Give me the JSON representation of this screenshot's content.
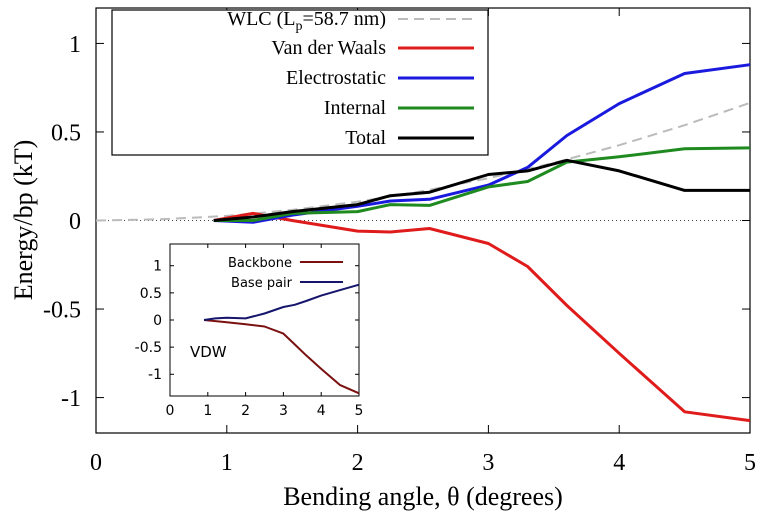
{
  "chart_data": [
    {
      "type": "line",
      "xlabel": "Bending angle, θ (degrees)",
      "ylabel": "Energy/bp (kT)",
      "xlim": [
        0,
        5
      ],
      "ylim": [
        -1.2,
        1.2
      ],
      "xticks": [
        "0",
        "1",
        "2",
        "3",
        "4",
        "5"
      ],
      "yticks": [
        "-1",
        "-0.5",
        "0",
        "0.5",
        "1"
      ],
      "legend_position": "top-left",
      "zero_line": {
        "y": 0,
        "style": "dotted",
        "color": "#444444"
      },
      "series": [
        {
          "name": "WLC (Lp=58.7 nm)",
          "name_main": "WLC (L",
          "name_sub": "p",
          "name_tail": "=58.7 nm)",
          "color": "#bbbbbb",
          "dashed": true,
          "x": [
            0,
            0.5,
            1,
            1.5,
            2,
            2.5,
            3,
            3.5,
            4,
            4.5,
            5
          ],
          "y": [
            0,
            0.007,
            0.026,
            0.06,
            0.106,
            0.166,
            0.239,
            0.325,
            0.425,
            0.538,
            0.664
          ]
        },
        {
          "name": "Van der Waals",
          "color": "#e01b1b",
          "dashed": false,
          "x": [
            0.9,
            1.2,
            1.5,
            2.0,
            2.25,
            2.55,
            3.0,
            3.3,
            3.6,
            4.0,
            4.5,
            5.0
          ],
          "y": [
            0.0,
            0.04,
            0.0,
            -0.06,
            -0.065,
            -0.045,
            -0.13,
            -0.26,
            -0.48,
            -0.75,
            -1.08,
            -1.13
          ]
        },
        {
          "name": "Electrostatic",
          "color": "#1a1adf",
          "dashed": false,
          "x": [
            0.9,
            1.2,
            1.5,
            2.0,
            2.25,
            2.55,
            3.0,
            3.3,
            3.6,
            4.0,
            4.5,
            5.0
          ],
          "y": [
            0.0,
            -0.01,
            0.03,
            0.08,
            0.11,
            0.12,
            0.2,
            0.3,
            0.48,
            0.66,
            0.83,
            0.88
          ]
        },
        {
          "name": "Internal",
          "color": "#1f8a1f",
          "dashed": false,
          "x": [
            0.9,
            1.2,
            1.5,
            2.0,
            2.25,
            2.55,
            3.0,
            3.3,
            3.6,
            4.0,
            4.5,
            5.0
          ],
          "y": [
            0.0,
            0.0,
            0.04,
            0.05,
            0.09,
            0.085,
            0.19,
            0.22,
            0.33,
            0.36,
            0.405,
            0.41
          ]
        },
        {
          "name": "Total",
          "color": "#000000",
          "dashed": false,
          "x": [
            0.9,
            1.2,
            1.5,
            2.0,
            2.25,
            2.55,
            3.0,
            3.3,
            3.6,
            4.0,
            4.5,
            5.0
          ],
          "y": [
            0.0,
            0.02,
            0.05,
            0.09,
            0.14,
            0.16,
            0.26,
            0.28,
            0.34,
            0.28,
            0.17,
            0.17
          ]
        }
      ]
    },
    {
      "type": "line",
      "inset": true,
      "title": "VDW",
      "xlim": [
        0,
        5
      ],
      "ylim": [
        -1.4,
        1.4
      ],
      "xticks": [
        "0",
        "1",
        "2",
        "3",
        "4",
        "5"
      ],
      "yticks": [
        "1",
        "0.5",
        "0",
        "-0.5",
        "-1"
      ],
      "legend_position": "top-left",
      "series": [
        {
          "name": "Backbone",
          "color": "#7a1010",
          "x": [
            0.9,
            1.2,
            1.5,
            2.0,
            2.5,
            3.0,
            3.3,
            3.6,
            4.0,
            4.5,
            5.0
          ],
          "y": [
            0.0,
            -0.02,
            -0.04,
            -0.08,
            -0.12,
            -0.25,
            -0.45,
            -0.65,
            -0.9,
            -1.2,
            -1.35
          ]
        },
        {
          "name": "Base pair",
          "color": "#15156b",
          "x": [
            0.9,
            1.2,
            1.5,
            2.0,
            2.5,
            3.0,
            3.3,
            3.6,
            4.0,
            4.5,
            5.0
          ],
          "y": [
            0.0,
            0.03,
            0.04,
            0.03,
            0.12,
            0.24,
            0.28,
            0.35,
            0.45,
            0.55,
            0.65
          ]
        }
      ]
    }
  ]
}
